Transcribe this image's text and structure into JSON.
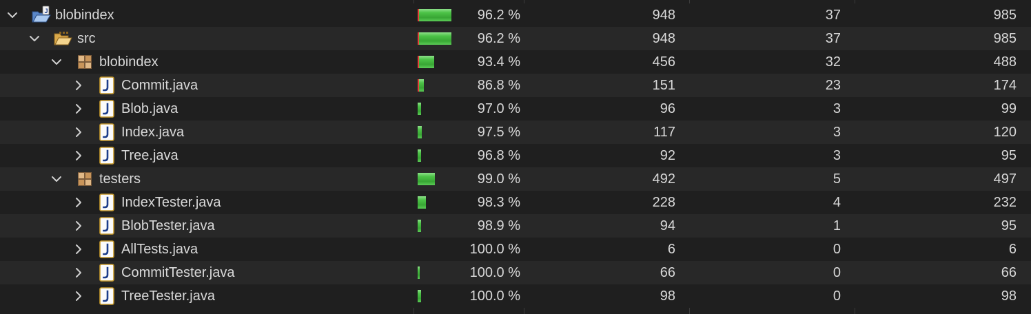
{
  "colors": {
    "covered": "#4cc247",
    "missed": "#e4403c",
    "background": "#1f1f1f",
    "alt_row": "#282828"
  },
  "icons": {
    "project": "project-folder-icon",
    "folder": "source-folder-icon",
    "package": "package-icon",
    "file": "java-file-icon",
    "expanded": "chevron-down-icon",
    "collapsed": "chevron-right-icon"
  },
  "rows": [
    {
      "name": "blobindex",
      "type": "project",
      "depth": 0,
      "expanded": true,
      "coverage": "96.2 %",
      "covered": "948",
      "missed": "37",
      "total": "985",
      "ratio": 0.962
    },
    {
      "name": "src",
      "type": "folder",
      "depth": 1,
      "expanded": true,
      "coverage": "96.2 %",
      "covered": "948",
      "missed": "37",
      "total": "985",
      "ratio": 0.962
    },
    {
      "name": "blobindex",
      "type": "package",
      "depth": 2,
      "expanded": true,
      "coverage": "93.4 %",
      "covered": "456",
      "missed": "32",
      "total": "488",
      "ratio": 0.934
    },
    {
      "name": "Commit.java",
      "type": "file",
      "depth": 3,
      "expanded": false,
      "coverage": "86.8 %",
      "covered": "151",
      "missed": "23",
      "total": "174",
      "ratio": 0.868
    },
    {
      "name": "Blob.java",
      "type": "file",
      "depth": 3,
      "expanded": false,
      "coverage": "97.0 %",
      "covered": "96",
      "missed": "3",
      "total": "99",
      "ratio": 0.97
    },
    {
      "name": "Index.java",
      "type": "file",
      "depth": 3,
      "expanded": false,
      "coverage": "97.5 %",
      "covered": "117",
      "missed": "3",
      "total": "120",
      "ratio": 0.975
    },
    {
      "name": "Tree.java",
      "type": "file",
      "depth": 3,
      "expanded": false,
      "coverage": "96.8 %",
      "covered": "92",
      "missed": "3",
      "total": "95",
      "ratio": 0.968
    },
    {
      "name": "testers",
      "type": "package",
      "depth": 2,
      "expanded": true,
      "coverage": "99.0 %",
      "covered": "492",
      "missed": "5",
      "total": "497",
      "ratio": 0.99
    },
    {
      "name": "IndexTester.java",
      "type": "file",
      "depth": 3,
      "expanded": false,
      "coverage": "98.3 %",
      "covered": "228",
      "missed": "4",
      "total": "232",
      "ratio": 0.983
    },
    {
      "name": "BlobTester.java",
      "type": "file",
      "depth": 3,
      "expanded": false,
      "coverage": "98.9 %",
      "covered": "94",
      "missed": "1",
      "total": "95",
      "ratio": 0.989
    },
    {
      "name": "AllTests.java",
      "type": "file",
      "depth": 3,
      "expanded": false,
      "coverage": "100.0 %",
      "covered": "6",
      "missed": "0",
      "total": "6",
      "ratio": 1.0
    },
    {
      "name": "CommitTester.java",
      "type": "file",
      "depth": 3,
      "expanded": false,
      "coverage": "100.0 %",
      "covered": "66",
      "missed": "0",
      "total": "66",
      "ratio": 1.0
    },
    {
      "name": "TreeTester.java",
      "type": "file",
      "depth": 3,
      "expanded": false,
      "coverage": "100.0 %",
      "covered": "98",
      "missed": "0",
      "total": "98",
      "ratio": 1.0
    }
  ]
}
